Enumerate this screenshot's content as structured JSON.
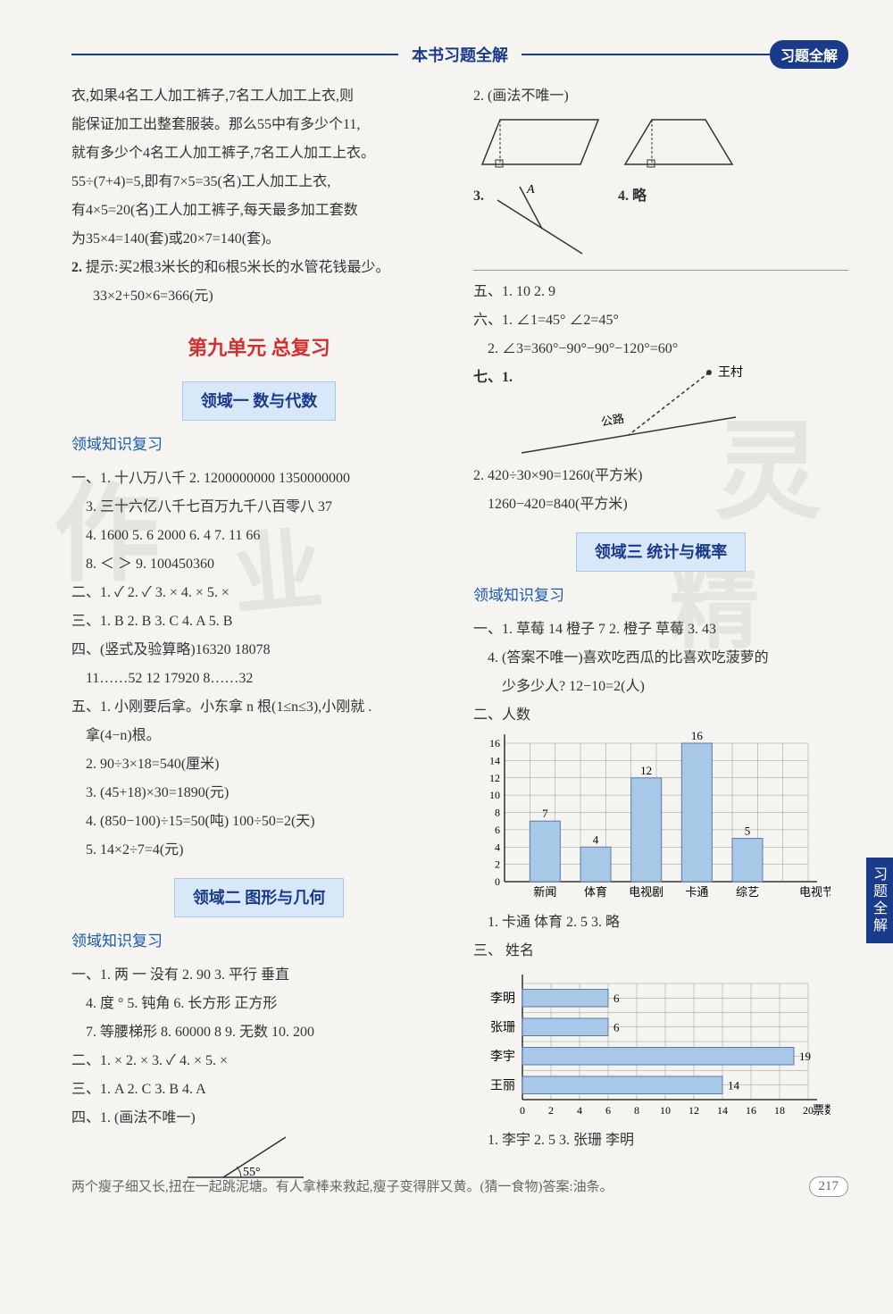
{
  "header": {
    "title": "本书习题全解",
    "badge": "习题全解"
  },
  "sideTab": "习题全解",
  "left": {
    "intro": [
      "衣,如果4名工人加工裤子,7名工人加工上衣,则",
      "能保证加工出整套服装。那么55中有多少个11,",
      "就有多少个4名工人加工裤子,7名工人加工上衣。",
      "55÷(7+4)=5,即有7×5=35(名)工人加工上衣,",
      "有4×5=20(名)工人加工裤子,每天最多加工套数",
      "为35×4=140(套)或20×7=140(套)。"
    ],
    "q2_label": "2.",
    "q2_text": "提示:买2根3米长的和6根5米长的水管花钱最少。",
    "q2_calc": "33×2+50×6=366(元)",
    "unitTitle": "第九单元  总复习",
    "area1": {
      "title": "领域一  数与代数"
    },
    "reviewTitle": "领域知识复习",
    "r1": {
      "line1": "一、1. 十八万八千  2. 1200000000  1350000000",
      "line2": "　3. 三十六亿八千七百万九千八百零八  37",
      "line3": "　4. 1600  5. 6  2000  6. 4  7. 11  66",
      "line4": "　8. ＜  ＞  9. 100450360",
      "line5": "二、1. ✓  2. ✓  3. ×  4. ×  5. ×",
      "line6": "三、1. B  2. B  3. C  4. A  5. B",
      "line7": "四、(竖式及验算略)16320  18078",
      "line8": "　11……52  12  17920  8……32",
      "line9": "五、1. 小刚要后拿。小东拿 n 根(1≤n≤3),小刚就 .",
      "line10": "　拿(4−n)根。",
      "line11": "　2. 90÷3×18=540(厘米)",
      "line12": "　3. (45+18)×30=1890(元)",
      "line13": "　4. (850−100)÷15=50(吨)  100÷50=2(天)",
      "line14": "　5. 14×2÷7=4(元)"
    },
    "area2": {
      "title": "领域二  图形与几何"
    },
    "r2": {
      "line1": "一、1. 两  一  没有  2. 90  3. 平行  垂直",
      "line2": "　4. 度  °  5. 钝角  6. 长方形  正方形",
      "line3": "　7. 等腰梯形  8. 60000  8  9. 无数  10. 200",
      "line4": "二、1. ×  2. ×  3. ✓  4. ×  5. ×",
      "line5": "三、1. A  2. C  3. B  4. A",
      "line6": "四、1. (画法不唯一)"
    },
    "angle55": "55°"
  },
  "right": {
    "q2": "2. (画法不唯一)",
    "q3": "3.",
    "q3A": "A",
    "q4": "4. 略",
    "five": "五、1. 10  2. 9",
    "six1": "六、1. ∠1=45°  ∠2=45°",
    "six2": "　2. ∠3=360°−90°−90°−120°=60°",
    "seven": "七、1.",
    "village": "王村",
    "road": "公路",
    "calc1": "2. 420÷30×90=1260(平方米)",
    "calc2": "　1260−420=840(平方米)",
    "area3": {
      "title": "领域三  统计与概率"
    },
    "reviewTitle": "领域知识复习",
    "r3_1": "一、1. 草莓  14  橙子  7  2. 橙子  草莓  3. 43",
    "r3_2": "　4. (答案不唯一)喜欢吃西瓜的比喜欢吃菠萝的",
    "r3_3": "　　少多少人?  12−10=2(人)",
    "chart1": {
      "ylabel": "二、人数",
      "categories": [
        "新闻",
        "体育",
        "电视剧",
        "卡通",
        "综艺",
        "电视节目"
      ],
      "values": [
        7,
        4,
        12,
        16,
        5
      ],
      "yticks": [
        0,
        2,
        4,
        6,
        8,
        10,
        12,
        14,
        16
      ],
      "barColor": "#a8c8e8",
      "gridColor": "#999",
      "labels": {
        "7": "7",
        "4": "4",
        "12": "12",
        "16": "16",
        "5": "5"
      }
    },
    "r3_ans": "　1. 卡通  体育  2. 5  3. 略",
    "chart2": {
      "ylabel": "三、  姓名",
      "names": [
        "李明",
        "张珊",
        "李宇",
        "王丽"
      ],
      "values": [
        6,
        6,
        19,
        14
      ],
      "xticks": [
        0,
        2,
        4,
        6,
        8,
        10,
        12,
        14,
        16,
        18,
        20
      ],
      "xlabel": "票数",
      "barColor": "#a8c8e8",
      "gridColor": "#999"
    },
    "r3_ans2": "　1. 李宇  2. 5  3. 张珊  李明"
  },
  "footer": {
    "text": "两个瘦子细又长,扭在一起跳泥塘。有人拿棒来救起,瘦子变得胖又黄。(猜一食物)答案:油条。",
    "pageNum": "217"
  }
}
